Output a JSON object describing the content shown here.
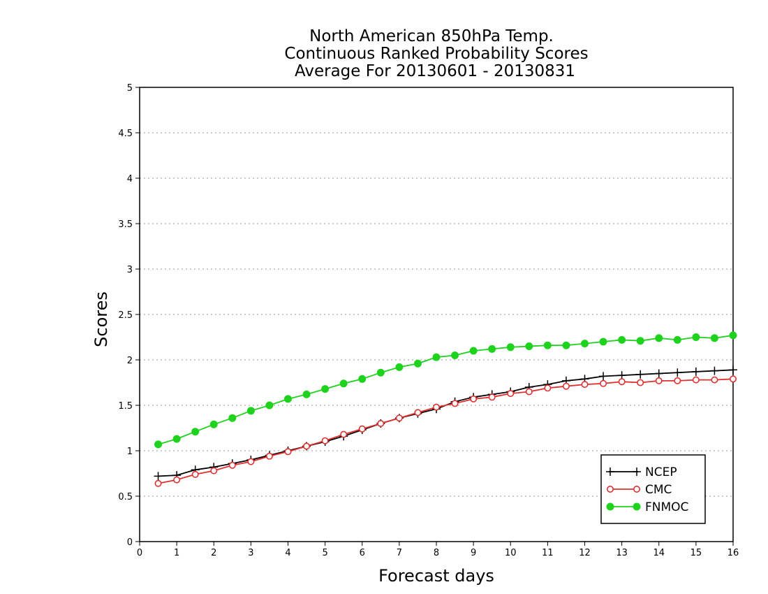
{
  "chart_data": {
    "type": "line",
    "title": [
      "North American 850hPa Temp.",
      "Continuous Ranked Probability Scores",
      "Average For 20130601 - 20130831"
    ],
    "xlabel": "Forecast days",
    "ylabel": "Scores",
    "xlim": [
      0,
      16
    ],
    "ylim": [
      0,
      5
    ],
    "xticks": [
      0,
      1,
      2,
      3,
      4,
      5,
      6,
      7,
      8,
      9,
      10,
      11,
      12,
      13,
      14,
      15,
      16
    ],
    "yticks": [
      0,
      0.5,
      1,
      1.5,
      2,
      2.5,
      3,
      3.5,
      4,
      4.5,
      5
    ],
    "ytick_labels": [
      "0",
      "0.5",
      "1",
      "1.5",
      "2",
      "2.5",
      "3",
      "3.5",
      "4",
      "4.5",
      "5"
    ],
    "grid": "horizontal dotted",
    "legend_position": "bottom-right",
    "x": [
      0.5,
      1,
      1.5,
      2,
      2.5,
      3,
      3.5,
      4,
      4.5,
      5,
      5.5,
      6,
      6.5,
      7,
      7.5,
      8,
      8.5,
      9,
      9.5,
      10,
      10.5,
      11,
      11.5,
      12,
      12.5,
      13,
      13.5,
      14,
      14.5,
      15,
      15.5,
      16
    ],
    "series": [
      {
        "name": "NCEP",
        "color": "#000000",
        "marker": "plus",
        "values": [
          0.72,
          0.73,
          0.79,
          0.82,
          0.86,
          0.9,
          0.95,
          1.0,
          1.05,
          1.1,
          1.16,
          1.23,
          1.3,
          1.36,
          1.41,
          1.46,
          1.54,
          1.59,
          1.62,
          1.65,
          1.7,
          1.73,
          1.77,
          1.79,
          1.82,
          1.83,
          1.84,
          1.85,
          1.86,
          1.87,
          1.88,
          1.89
        ]
      },
      {
        "name": "CMC",
        "color": "#e03030",
        "marker": "open-circle",
        "values": [
          0.64,
          0.68,
          0.74,
          0.78,
          0.84,
          0.88,
          0.94,
          0.99,
          1.05,
          1.11,
          1.18,
          1.24,
          1.3,
          1.36,
          1.42,
          1.48,
          1.52,
          1.57,
          1.59,
          1.63,
          1.65,
          1.69,
          1.71,
          1.73,
          1.74,
          1.76,
          1.75,
          1.77,
          1.77,
          1.78,
          1.78,
          1.79
        ]
      },
      {
        "name": "FNMOC",
        "color": "#1ed21e",
        "marker": "filled-circle",
        "values": [
          1.07,
          1.13,
          1.21,
          1.29,
          1.36,
          1.44,
          1.5,
          1.57,
          1.62,
          1.68,
          1.74,
          1.79,
          1.86,
          1.92,
          1.96,
          2.03,
          2.05,
          2.1,
          2.12,
          2.14,
          2.15,
          2.16,
          2.16,
          2.18,
          2.2,
          2.22,
          2.21,
          2.24,
          2.22,
          2.25,
          2.24,
          2.27
        ]
      }
    ]
  }
}
